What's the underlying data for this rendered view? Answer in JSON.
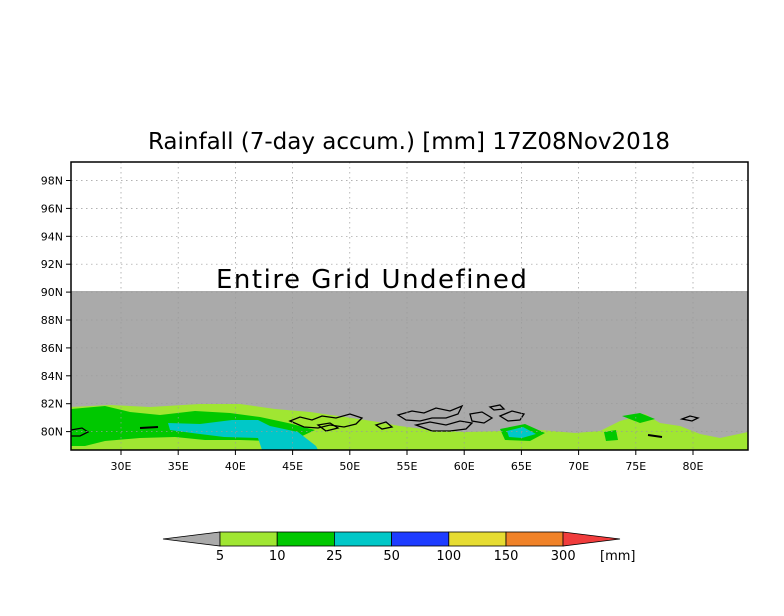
{
  "title": "Rainfall (7-day accum.) [mm] 17Z08Nov2018",
  "annotation": "Entire Grid Undefined",
  "axes": {
    "lat_ticks": [
      "98N",
      "96N",
      "94N",
      "92N",
      "90N",
      "88N",
      "86N",
      "84N",
      "82N",
      "80N"
    ],
    "lon_ticks": [
      "30E",
      "35E",
      "40E",
      "45E",
      "50E",
      "55E",
      "60E",
      "65E",
      "70E",
      "75E",
      "80E"
    ]
  },
  "colorbar": {
    "labels": [
      "5",
      "10",
      "25",
      "50",
      "100",
      "150",
      "300"
    ],
    "unit": "[mm]",
    "colors": [
      "#aaaaaa",
      "#a0e632",
      "#00c800",
      "#00c8c8",
      "#1e3cff",
      "#e6dc32",
      "#f08228",
      "#f03c3c"
    ]
  },
  "map_colors": {
    "undefined": "#aaaaaa",
    "light_green": "#a0e632",
    "green": "#00c800",
    "cyan": "#00c8c8",
    "outline": "#000000"
  }
}
